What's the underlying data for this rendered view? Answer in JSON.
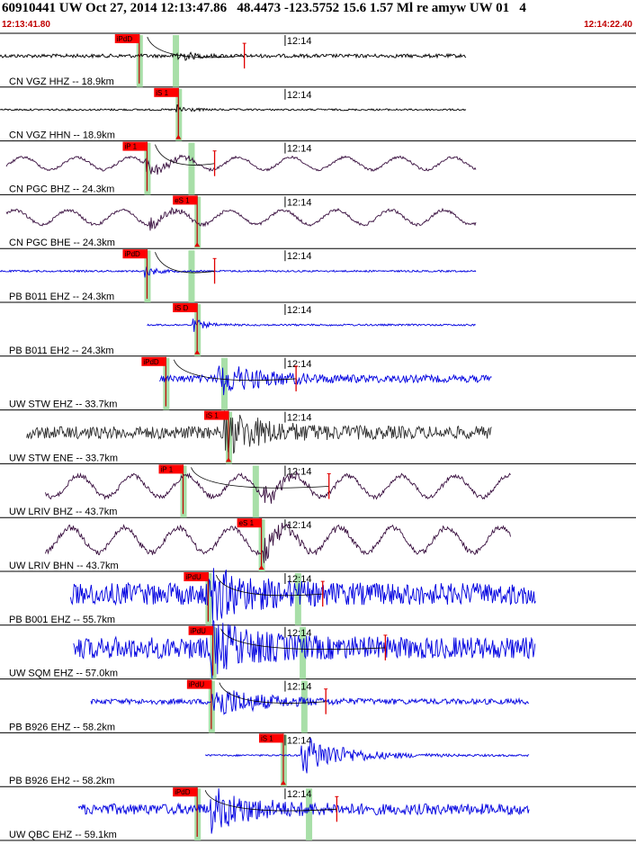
{
  "header": {
    "title": "60910441 UW Oct 27, 2014 12:13:47.86   48.4473 -123.5752 15.6 1.57 Ml re amyw UW 01   4",
    "start_time": "12:13:41.80",
    "end_time": "12:14:22.40"
  },
  "chart_data": {
    "type": "seismogram",
    "x_range_seconds": [
      0,
      40.6
    ],
    "minute_marker": {
      "label": "12:14",
      "t": 18.2
    },
    "colors": {
      "blue": "#0000e0",
      "black": "#000000",
      "dark": "#3a1040",
      "gray": "#303030",
      "pick_box": "#ff0000",
      "pick_band": "#9fdc9f",
      "curve": "#000000"
    },
    "traces": [
      {
        "label": "CN VGZ HHZ -- 18.9km",
        "color": "black",
        "t0": 0.0,
        "t1": 29.8,
        "amp": 2,
        "style": "flat",
        "pick": {
          "label": "iPdD",
          "t": 8.6
        },
        "event_t": 11.2,
        "event_amp": 9,
        "bg_t": 11.2,
        "red_tick_t": 15.6,
        "curve": true
      },
      {
        "label": "CN VGZ HHN -- 18.9km",
        "color": "black",
        "t0": 0.0,
        "t1": 29.8,
        "amp": 1,
        "style": "flat",
        "pick": {
          "label": "iS 1",
          "t": 11.1
        },
        "event_t": 11.2,
        "event_amp": 12,
        "bg_t": null,
        "red_tick_t": null,
        "curve": false
      },
      {
        "label": "CN PGC BHZ -- 24.3km",
        "color": "dark",
        "t0": 0.4,
        "t1": 30.4,
        "amp": 7,
        "style": "long",
        "pick": {
          "label": "iP 1",
          "t": 9.1
        },
        "event_t": 9.2,
        "event_amp": 10,
        "bg_t": 12.2,
        "red_tick_t": 13.7,
        "curve": true
      },
      {
        "label": "CN PGC BHE -- 24.3km",
        "color": "dark",
        "t0": 0.4,
        "t1": 30.4,
        "amp": 8,
        "style": "long",
        "pick": {
          "label": "eS 1",
          "t": 12.3
        },
        "event_t": 9.5,
        "event_amp": 10,
        "bg_t": null,
        "red_tick_t": null,
        "curve": false
      },
      {
        "label": "PB B011 EHZ -- 24.3km",
        "color": "blue",
        "t0": 0.0,
        "t1": 30.4,
        "amp": 1,
        "style": "flat",
        "pick": {
          "label": "iPdD",
          "t": 9.1
        },
        "event_t": 9.2,
        "event_amp": 14,
        "bg_t": 12.2,
        "red_tick_t": 13.7,
        "curve": true
      },
      {
        "label": "PB B011 EH2 -- 24.3km",
        "color": "blue",
        "t0": 9.4,
        "t1": 30.4,
        "amp": 1,
        "style": "flat",
        "pick": {
          "label": "iS D",
          "t": 12.3
        },
        "event_t": 12.3,
        "event_amp": 16,
        "bg_t": null,
        "red_tick_t": null,
        "curve": false
      },
      {
        "label": "UW STW EHZ -- 33.7km",
        "color": "blue",
        "t0": 10.2,
        "t1": 31.4,
        "amp": 4,
        "style": "noise",
        "pick": {
          "label": "iPdD",
          "t": 10.3
        },
        "event_t": 13.9,
        "event_amp": 18,
        "bg_t": 14.3,
        "red_tick_t": 18.9,
        "curve": true
      },
      {
        "label": "UW STW ENE -- 33.7km",
        "color": "gray",
        "t0": 1.7,
        "t1": 31.4,
        "amp": 7,
        "style": "noise",
        "pick": {
          "label": "iS 1",
          "t": 14.3
        },
        "event_t": 14.3,
        "event_amp": 22,
        "bg_t": null,
        "red_tick_t": null,
        "curve": false
      },
      {
        "label": "UW LRIV BHZ -- 43.7km",
        "color": "dark",
        "t0": 2.9,
        "t1": 32.6,
        "amp": 12,
        "style": "long",
        "pick": {
          "label": "iP 1",
          "t": 11.4
        },
        "event_t": 16.8,
        "event_amp": 14,
        "bg_t": 16.3,
        "red_tick_t": 21.0,
        "curve": true
      },
      {
        "label": "UW LRIV BHN -- 43.7km",
        "color": "dark",
        "t0": 2.9,
        "t1": 32.6,
        "amp": 14,
        "style": "long",
        "pick": {
          "label": "eS 1",
          "t": 16.4
        },
        "event_t": 16.8,
        "event_amp": 20,
        "bg_t": null,
        "red_tick_t": null,
        "curve": false
      },
      {
        "label": "PB B001 EHZ -- 55.7km",
        "color": "blue",
        "t0": 4.5,
        "t1": 34.2,
        "amp": 12,
        "style": "noise",
        "pick": {
          "label": "iPdU",
          "t": 13.0
        },
        "event_t": 13.2,
        "event_amp": 24,
        "bg_t": 19.0,
        "red_tick_t": 20.6,
        "curve": true
      },
      {
        "label": "UW SQM EHZ -- 57.0km",
        "color": "blue",
        "t0": 4.7,
        "t1": 34.2,
        "amp": 12,
        "style": "noise",
        "pick": {
          "label": "iPdU",
          "t": 13.3
        },
        "event_t": 13.4,
        "event_amp": 24,
        "bg_t": 19.3,
        "red_tick_t": 24.6,
        "curve": true
      },
      {
        "label": "PB B926 EHZ -- 58.2km",
        "color": "blue",
        "t0": 5.8,
        "t1": 33.8,
        "amp": 3,
        "style": "noise",
        "pick": {
          "label": "iPdU",
          "t": 13.2
        },
        "event_t": 13.5,
        "event_amp": 20,
        "bg_t": 19.4,
        "red_tick_t": 20.8,
        "curve": true
      },
      {
        "label": "PB B926 EH2 -- 58.2km",
        "color": "blue",
        "t0": 13.1,
        "t1": 33.8,
        "amp": 1,
        "style": "noise",
        "pick": {
          "label": "iS 1",
          "t": 17.8
        },
        "event_t": 19.2,
        "event_amp": 24,
        "bg_t": null,
        "red_tick_t": null,
        "curve": false
      },
      {
        "label": "UW QBC EHZ -- 59.1km",
        "color": "blue",
        "t0": 5.0,
        "t1": 33.8,
        "amp": 6,
        "style": "noise",
        "pick": {
          "label": "iPdD",
          "t": 12.3
        },
        "event_t": 13.4,
        "event_amp": 22,
        "bg_t": 19.7,
        "red_tick_t": 21.5,
        "curve": true
      }
    ]
  }
}
